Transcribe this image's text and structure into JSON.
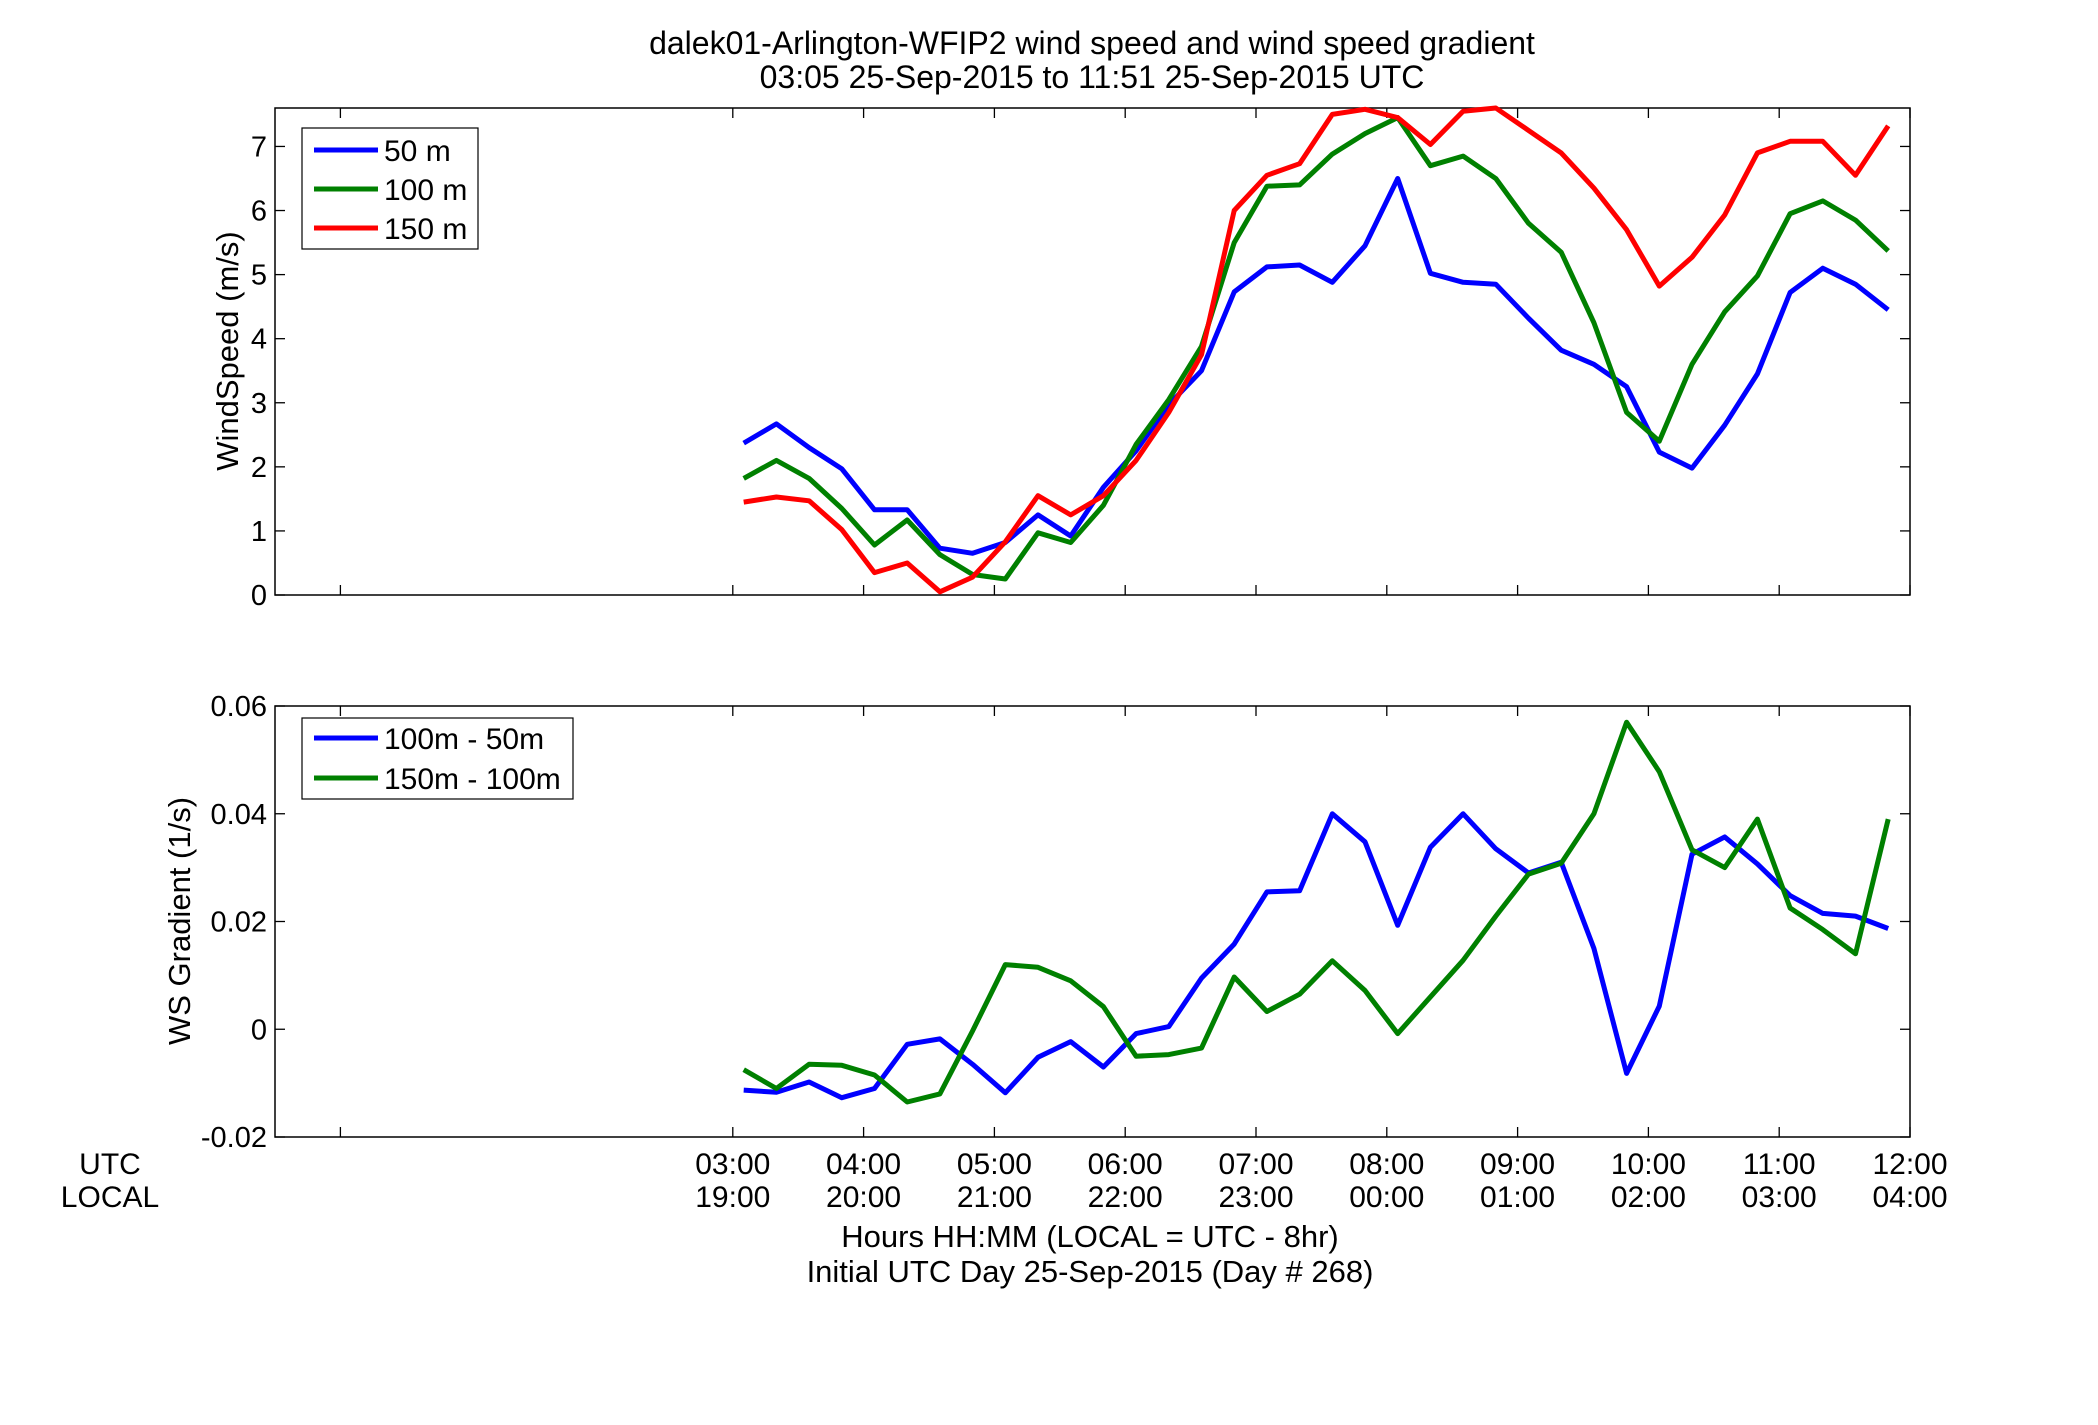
{
  "title": {
    "line1": "dalek01-Arlington-WFIP2  wind speed and wind speed gradient",
    "line2": "03:05 25-Sep-2015 to 11:51 25-Sep-2015  UTC"
  },
  "xaxis": {
    "row_label_utc": "UTC",
    "row_label_local": "LOCAL",
    "label_line1": "Hours HH:MM  (LOCAL = UTC - 8hr)",
    "label_line2": "Initial UTC Day 25-Sep-2015 (Day # 268)"
  },
  "chart_data": [
    {
      "type": "line",
      "ylabel": "WindSpeed (m/s)",
      "xlim": [
        -0.5,
        12
      ],
      "ylim": [
        0,
        7.6
      ],
      "yticks": [
        0,
        1,
        2,
        3,
        4,
        5,
        6,
        7
      ],
      "ytick_labels": [
        "0",
        "1",
        "2",
        "3",
        "4",
        "5",
        "6",
        "7"
      ],
      "xticks": [
        0,
        3,
        4,
        5,
        6,
        7,
        8,
        9,
        10,
        11,
        12
      ],
      "legend": "top-left",
      "grid": false,
      "x": [
        3.083,
        3.333,
        3.583,
        3.833,
        4.083,
        4.333,
        4.583,
        4.833,
        5.083,
        5.333,
        5.583,
        5.833,
        6.083,
        6.333,
        6.583,
        6.833,
        7.083,
        7.333,
        7.583,
        7.833,
        8.083,
        8.333,
        8.583,
        8.833,
        9.083,
        9.333,
        9.583,
        9.833,
        10.083,
        10.333,
        10.583,
        10.833,
        11.083,
        11.333,
        11.583,
        11.833
      ],
      "series": [
        {
          "name": "50 m",
          "color": "#0000ff",
          "values": [
            2.37,
            2.67,
            2.3,
            1.97,
            1.33,
            1.33,
            0.73,
            0.65,
            0.82,
            1.25,
            0.92,
            1.68,
            2.25,
            2.97,
            3.5,
            4.73,
            5.12,
            5.15,
            4.88,
            5.45,
            6.5,
            5.02,
            4.88,
            4.85,
            4.32,
            3.82,
            3.6,
            3.25,
            2.23,
            1.98,
            2.65,
            3.45,
            4.72,
            5.1,
            4.85,
            4.45
          ]
        },
        {
          "name": "100 m",
          "color": "#008000",
          "values": [
            1.82,
            2.1,
            1.82,
            1.35,
            0.78,
            1.17,
            0.63,
            0.32,
            0.25,
            0.97,
            0.82,
            1.4,
            2.35,
            3.05,
            3.88,
            5.5,
            6.38,
            6.4,
            6.88,
            7.2,
            7.45,
            6.7,
            6.85,
            6.5,
            5.8,
            5.35,
            4.25,
            2.85,
            2.4,
            3.6,
            4.42,
            4.98,
            5.95,
            6.15,
            5.85,
            5.37
          ]
        },
        {
          "name": "150 m",
          "color": "#ff0000",
          "values": [
            1.45,
            1.53,
            1.47,
            1.02,
            0.35,
            0.5,
            0.05,
            0.28,
            0.83,
            1.55,
            1.25,
            1.55,
            2.1,
            2.85,
            3.75,
            6.0,
            6.55,
            6.73,
            7.5,
            7.58,
            7.45,
            7.03,
            7.55,
            7.6,
            7.25,
            6.9,
            6.35,
            5.7,
            4.82,
            5.27,
            5.93,
            6.9,
            7.08,
            7.08,
            6.55,
            7.32
          ]
        }
      ]
    },
    {
      "type": "line",
      "ylabel": "WS Gradient (1/s)",
      "xlim": [
        -0.5,
        12
      ],
      "ylim": [
        -0.02,
        0.06
      ],
      "yticks": [
        -0.02,
        0,
        0.02,
        0.04,
        0.06
      ],
      "ytick_labels": [
        "-0.02",
        "0",
        "0.02",
        "0.04",
        "0.06"
      ],
      "xticks": [
        0,
        3,
        4,
        5,
        6,
        7,
        8,
        9,
        10,
        11,
        12
      ],
      "xtick_labels_utc": [
        "",
        "03:00",
        "04:00",
        "05:00",
        "06:00",
        "07:00",
        "08:00",
        "09:00",
        "10:00",
        "11:00",
        "12:00"
      ],
      "xtick_labels_local": [
        "",
        "19:00",
        "20:00",
        "21:00",
        "22:00",
        "23:00",
        "00:00",
        "01:00",
        "02:00",
        "03:00",
        "04:00"
      ],
      "legend": "top-left",
      "grid": false,
      "x": [
        3.083,
        3.333,
        3.583,
        3.833,
        4.083,
        4.333,
        4.583,
        4.833,
        5.083,
        5.333,
        5.583,
        5.833,
        6.083,
        6.333,
        6.583,
        6.833,
        7.083,
        7.333,
        7.583,
        7.833,
        8.083,
        8.333,
        8.583,
        8.833,
        9.083,
        9.333,
        9.583,
        9.833,
        10.083,
        10.333,
        10.583,
        10.833,
        11.083,
        11.333,
        11.583,
        11.833
      ],
      "series": [
        {
          "name": "100m - 50m",
          "color": "#0000ff",
          "values": [
            -0.0113,
            -0.0117,
            -0.0098,
            -0.0127,
            -0.011,
            -0.0028,
            -0.0018,
            -0.0065,
            -0.0118,
            -0.0052,
            -0.0023,
            -0.007,
            -0.0008,
            0.0005,
            0.0095,
            0.0158,
            0.0255,
            0.0257,
            0.04,
            0.0348,
            0.0193,
            0.0338,
            0.04,
            0.0335,
            0.029,
            0.031,
            0.015,
            -0.0082,
            0.0043,
            0.0325,
            0.0357,
            0.0307,
            0.0248,
            0.0215,
            0.021,
            0.0187
          ]
        },
        {
          "name": "150m - 100m",
          "color": "#008000",
          "values": [
            -0.0075,
            -0.011,
            -0.0065,
            -0.0067,
            -0.0085,
            -0.0135,
            -0.012,
            -0.0003,
            0.012,
            0.0115,
            0.009,
            0.0042,
            -0.005,
            -0.0047,
            -0.0035,
            0.0097,
            0.0033,
            0.0065,
            0.0127,
            0.0072,
            -0.0008,
            0.006,
            0.0128,
            0.021,
            0.0288,
            0.0308,
            0.04,
            0.057,
            0.0478,
            0.0333,
            0.03,
            0.039,
            0.0225,
            0.0185,
            0.014,
            0.039
          ]
        }
      ]
    }
  ]
}
